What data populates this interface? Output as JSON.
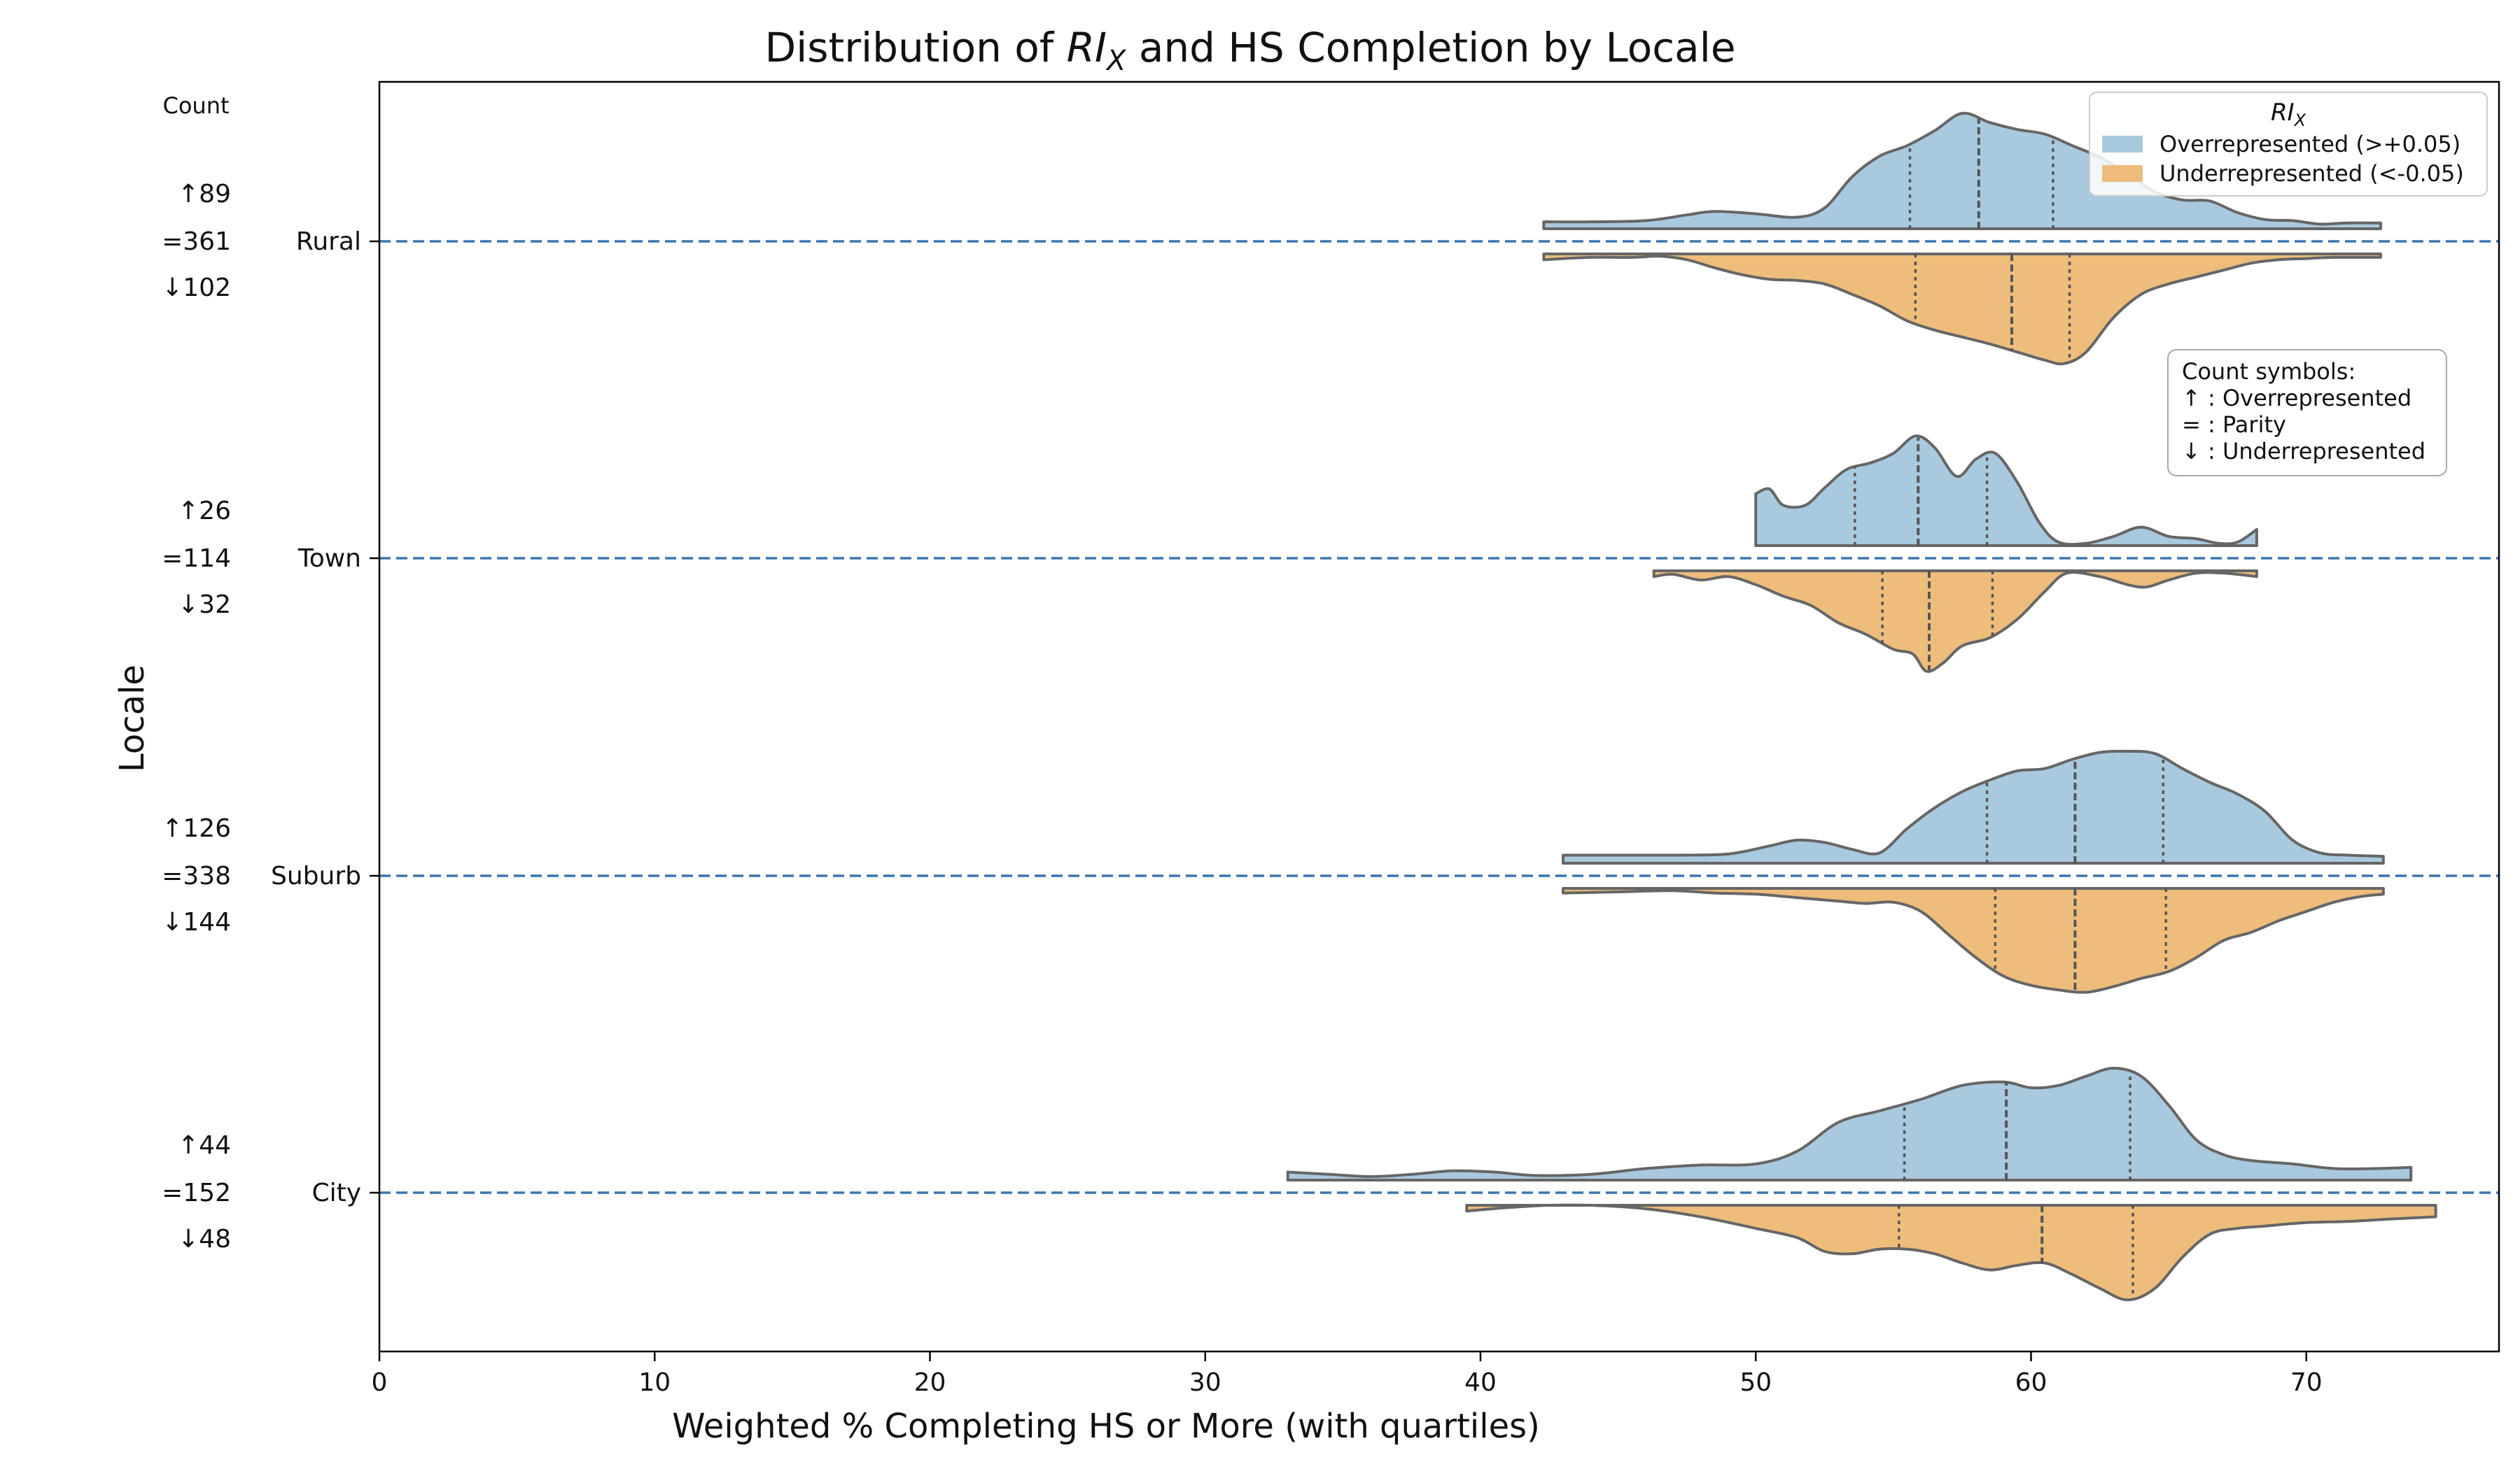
{
  "chart_data": {
    "type": "violin",
    "title_parts": [
      "Distribution of ",
      "RI",
      "X",
      " and HS Completion by Locale"
    ],
    "xlabel": "Weighted % Completing HS or More (with quartiles)",
    "ylabel": "Locale",
    "xlim": [
      0,
      77
    ],
    "x_ticks": [
      0,
      10,
      20,
      30,
      40,
      50,
      60,
      70
    ],
    "count_header": "Count",
    "legend": {
      "title_main": "RI",
      "title_sub": "X",
      "placement": "top-right",
      "entries": [
        {
          "label": "Overrepresented (>+0.05)",
          "color": "#a9c9de"
        },
        {
          "label": "Underrepresented (<-0.05)",
          "color": "#eebd7c"
        }
      ]
    },
    "symbols_box": {
      "lines": [
        "Count symbols:",
        "↑ : Overrepresented",
        "= : Parity",
        "↓ : Underrepresented"
      ]
    },
    "colors": {
      "over": "#a9c9de",
      "under": "#eebd7c",
      "outline": "#666666",
      "baseline": "#3b77b0"
    },
    "locales": [
      {
        "name": "Rural",
        "counts": [
          "↑89",
          "=361",
          "↓102"
        ],
        "over": {
          "quartiles": [
            55.6,
            58.1,
            60.8
          ],
          "density": [
            [
              42.3,
              0.06
            ],
            [
              44,
              0.06
            ],
            [
              46,
              0.07
            ],
            [
              47.5,
              0.12
            ],
            [
              48.5,
              0.15
            ],
            [
              50,
              0.13
            ],
            [
              51.5,
              0.1
            ],
            [
              52.5,
              0.18
            ],
            [
              53.5,
              0.45
            ],
            [
              54.5,
              0.63
            ],
            [
              55.5,
              0.72
            ],
            [
              56.5,
              0.85
            ],
            [
              57.5,
              1.0
            ],
            [
              58.5,
              0.92
            ],
            [
              59.5,
              0.86
            ],
            [
              60.5,
              0.82
            ],
            [
              61.5,
              0.72
            ],
            [
              62.5,
              0.62
            ],
            [
              63.5,
              0.48
            ],
            [
              64.5,
              0.32
            ],
            [
              65.5,
              0.25
            ],
            [
              66.5,
              0.24
            ],
            [
              67.5,
              0.14
            ],
            [
              68.5,
              0.08
            ],
            [
              69.5,
              0.07
            ],
            [
              70.5,
              0.04
            ],
            [
              71.5,
              0.05
            ],
            [
              72.7,
              0.05
            ]
          ]
        },
        "under": {
          "quartiles": [
            55.8,
            59.3,
            61.4
          ],
          "density": [
            [
              42.3,
              0.05
            ],
            [
              44,
              0.03
            ],
            [
              45.5,
              0.03
            ],
            [
              46.5,
              0.02
            ],
            [
              47.5,
              0.05
            ],
            [
              48.5,
              0.12
            ],
            [
              49.5,
              0.18
            ],
            [
              50.5,
              0.22
            ],
            [
              51.5,
              0.23
            ],
            [
              52.5,
              0.26
            ],
            [
              53.5,
              0.35
            ],
            [
              54.5,
              0.45
            ],
            [
              55.5,
              0.58
            ],
            [
              56.5,
              0.66
            ],
            [
              57.5,
              0.72
            ],
            [
              58.5,
              0.78
            ],
            [
              59.5,
              0.85
            ],
            [
              60.5,
              0.92
            ],
            [
              61.2,
              0.95
            ],
            [
              62.0,
              0.85
            ],
            [
              63.0,
              0.55
            ],
            [
              64.0,
              0.35
            ],
            [
              65.0,
              0.26
            ],
            [
              66.0,
              0.2
            ],
            [
              67.0,
              0.14
            ],
            [
              68.0,
              0.08
            ],
            [
              69.0,
              0.05
            ],
            [
              70.0,
              0.04
            ],
            [
              71.0,
              0.03
            ],
            [
              72.7,
              0.03
            ]
          ]
        }
      },
      {
        "name": "Town",
        "counts": [
          "↑26",
          "=114",
          "↓32"
        ],
        "over": {
          "quartiles": [
            53.6,
            55.9,
            58.4
          ],
          "density": [
            [
              50.0,
              0.45
            ],
            [
              50.5,
              0.49
            ],
            [
              51.0,
              0.35
            ],
            [
              51.8,
              0.35
            ],
            [
              52.5,
              0.5
            ],
            [
              53.3,
              0.66
            ],
            [
              54.2,
              0.72
            ],
            [
              55.0,
              0.8
            ],
            [
              55.8,
              0.95
            ],
            [
              56.5,
              0.85
            ],
            [
              57.3,
              0.6
            ],
            [
              58.0,
              0.75
            ],
            [
              58.7,
              0.8
            ],
            [
              59.5,
              0.55
            ],
            [
              60.3,
              0.2
            ],
            [
              61.0,
              0.03
            ],
            [
              62.0,
              0.02
            ],
            [
              63.0,
              0.08
            ],
            [
              64.0,
              0.16
            ],
            [
              65.0,
              0.08
            ],
            [
              66.0,
              0.06
            ],
            [
              66.8,
              0.02
            ],
            [
              67.5,
              0.03
            ],
            [
              68.2,
              0.14
            ]
          ]
        },
        "under": {
          "quartiles": [
            54.6,
            56.3,
            58.6
          ],
          "density": [
            [
              46.3,
              0.05
            ],
            [
              47.0,
              0.03
            ],
            [
              48.0,
              0.08
            ],
            [
              49.0,
              0.05
            ],
            [
              50.0,
              0.12
            ],
            [
              51.0,
              0.22
            ],
            [
              52.0,
              0.3
            ],
            [
              53.0,
              0.45
            ],
            [
              54.0,
              0.55
            ],
            [
              55.0,
              0.68
            ],
            [
              55.7,
              0.72
            ],
            [
              56.2,
              0.87
            ],
            [
              56.8,
              0.8
            ],
            [
              57.5,
              0.65
            ],
            [
              58.5,
              0.58
            ],
            [
              59.5,
              0.42
            ],
            [
              60.5,
              0.18
            ],
            [
              61.3,
              0.02
            ],
            [
              62.5,
              0.05
            ],
            [
              63.5,
              0.12
            ],
            [
              64.2,
              0.14
            ],
            [
              65.0,
              0.08
            ],
            [
              66.0,
              0.02
            ],
            [
              67.0,
              0.02
            ],
            [
              68.2,
              0.05
            ]
          ]
        }
      },
      {
        "name": "Suburb",
        "counts": [
          "↑126",
          "=338",
          "↓144"
        ],
        "over": {
          "quartiles": [
            58.4,
            61.6,
            64.8
          ],
          "density": [
            [
              43.0,
              0.07
            ],
            [
              45.0,
              0.07
            ],
            [
              47.0,
              0.07
            ],
            [
              49.0,
              0.08
            ],
            [
              50.5,
              0.15
            ],
            [
              51.5,
              0.2
            ],
            [
              52.5,
              0.18
            ],
            [
              53.5,
              0.12
            ],
            [
              54.5,
              0.09
            ],
            [
              55.5,
              0.3
            ],
            [
              56.5,
              0.48
            ],
            [
              57.5,
              0.62
            ],
            [
              58.5,
              0.72
            ],
            [
              59.5,
              0.8
            ],
            [
              60.5,
              0.82
            ],
            [
              61.5,
              0.9
            ],
            [
              62.5,
              0.96
            ],
            [
              63.5,
              0.97
            ],
            [
              64.5,
              0.95
            ],
            [
              65.5,
              0.82
            ],
            [
              66.5,
              0.7
            ],
            [
              67.5,
              0.6
            ],
            [
              68.5,
              0.45
            ],
            [
              69.5,
              0.2
            ],
            [
              70.5,
              0.09
            ],
            [
              71.5,
              0.07
            ],
            [
              72.8,
              0.06
            ]
          ]
        },
        "under": {
          "quartiles": [
            58.7,
            61.6,
            64.9
          ],
          "density": [
            [
              43.0,
              0.04
            ],
            [
              45.0,
              0.03
            ],
            [
              47.0,
              0.02
            ],
            [
              48.5,
              0.04
            ],
            [
              50.0,
              0.05
            ],
            [
              51.5,
              0.08
            ],
            [
              53.0,
              0.11
            ],
            [
              54.0,
              0.13
            ],
            [
              55.0,
              0.12
            ],
            [
              56.0,
              0.2
            ],
            [
              57.0,
              0.4
            ],
            [
              58.0,
              0.6
            ],
            [
              59.0,
              0.76
            ],
            [
              60.0,
              0.84
            ],
            [
              61.0,
              0.88
            ],
            [
              62.0,
              0.9
            ],
            [
              63.0,
              0.85
            ],
            [
              64.0,
              0.78
            ],
            [
              65.0,
              0.72
            ],
            [
              66.0,
              0.6
            ],
            [
              67.0,
              0.45
            ],
            [
              68.0,
              0.38
            ],
            [
              69.0,
              0.28
            ],
            [
              70.0,
              0.2
            ],
            [
              71.0,
              0.12
            ],
            [
              72.0,
              0.07
            ],
            [
              72.8,
              0.05
            ]
          ]
        }
      },
      {
        "name": "City",
        "counts": [
          "↑44",
          "=152",
          "↓48"
        ],
        "over": {
          "quartiles": [
            55.4,
            59.1,
            63.6
          ],
          "density": [
            [
              33.0,
              0.07
            ],
            [
              34.5,
              0.05
            ],
            [
              36.0,
              0.03
            ],
            [
              37.5,
              0.05
            ],
            [
              39.0,
              0.08
            ],
            [
              40.5,
              0.07
            ],
            [
              42.0,
              0.04
            ],
            [
              44.0,
              0.05
            ],
            [
              46.0,
              0.1
            ],
            [
              48.0,
              0.13
            ],
            [
              50.0,
              0.14
            ],
            [
              51.5,
              0.25
            ],
            [
              53.0,
              0.5
            ],
            [
              54.5,
              0.6
            ],
            [
              56.0,
              0.7
            ],
            [
              57.5,
              0.82
            ],
            [
              59.0,
              0.85
            ],
            [
              60.0,
              0.8
            ],
            [
              61.0,
              0.82
            ],
            [
              62.0,
              0.9
            ],
            [
              63.0,
              0.97
            ],
            [
              64.0,
              0.9
            ],
            [
              65.0,
              0.65
            ],
            [
              66.0,
              0.35
            ],
            [
              67.0,
              0.22
            ],
            [
              68.0,
              0.17
            ],
            [
              69.5,
              0.14
            ],
            [
              71.0,
              0.1
            ],
            [
              72.5,
              0.1
            ],
            [
              73.8,
              0.11
            ]
          ]
        },
        "under": {
          "quartiles": [
            55.2,
            60.4,
            63.7
          ],
          "density": [
            [
              39.5,
              0.05
            ],
            [
              41.0,
              0.02
            ],
            [
              42.5,
              0.0
            ],
            [
              44.0,
              0.0
            ],
            [
              46.0,
              0.03
            ],
            [
              48.0,
              0.1
            ],
            [
              50.0,
              0.2
            ],
            [
              51.5,
              0.28
            ],
            [
              52.5,
              0.4
            ],
            [
              53.5,
              0.42
            ],
            [
              54.5,
              0.38
            ],
            [
              55.5,
              0.38
            ],
            [
              56.5,
              0.42
            ],
            [
              57.5,
              0.5
            ],
            [
              58.5,
              0.56
            ],
            [
              59.5,
              0.52
            ],
            [
              60.5,
              0.5
            ],
            [
              61.5,
              0.6
            ],
            [
              62.5,
              0.72
            ],
            [
              63.5,
              0.82
            ],
            [
              64.5,
              0.72
            ],
            [
              65.5,
              0.45
            ],
            [
              66.5,
              0.25
            ],
            [
              67.5,
              0.2
            ],
            [
              68.5,
              0.18
            ],
            [
              70.0,
              0.15
            ],
            [
              71.5,
              0.14
            ],
            [
              73.0,
              0.12
            ],
            [
              74.7,
              0.1
            ]
          ]
        }
      }
    ]
  }
}
